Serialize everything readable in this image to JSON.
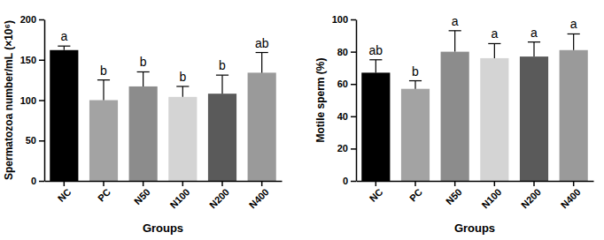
{
  "chart_data": [
    {
      "type": "bar",
      "x_label": "Groups",
      "y_label": "Spermatozoa number/mL (×10⁶)",
      "categories": [
        "NC",
        "PC",
        "N50",
        "N100",
        "N200",
        "N400"
      ],
      "values": [
        162,
        100,
        117,
        104,
        108,
        134
      ],
      "errors": [
        5,
        25,
        18,
        13,
        23,
        25
      ],
      "annotations": [
        "a",
        "b",
        "b",
        "b",
        "b",
        "ab"
      ],
      "colors": [
        "#000000",
        "#a3a3a3",
        "#8c8c8c",
        "#d4d4d4",
        "#5a5a5a",
        "#9a9a9a"
      ],
      "ylim": [
        0,
        200
      ],
      "yticks": [
        0,
        50,
        100,
        150,
        200
      ]
    },
    {
      "type": "bar",
      "x_label": "Groups",
      "y_label": "Motile sperm (%)",
      "categories": [
        "NC",
        "PC",
        "N50",
        "N100",
        "N200",
        "N400"
      ],
      "values": [
        67,
        57,
        80,
        76,
        77,
        81
      ],
      "errors": [
        8,
        5,
        13,
        9,
        9,
        10
      ],
      "annotations": [
        "ab",
        "b",
        "a",
        "a",
        "a",
        "a"
      ],
      "colors": [
        "#000000",
        "#a3a3a3",
        "#8c8c8c",
        "#d4d4d4",
        "#5a5a5a",
        "#9a9a9a"
      ],
      "ylim": [
        0,
        100
      ],
      "yticks": [
        0,
        20,
        40,
        60,
        80,
        100
      ]
    }
  ]
}
